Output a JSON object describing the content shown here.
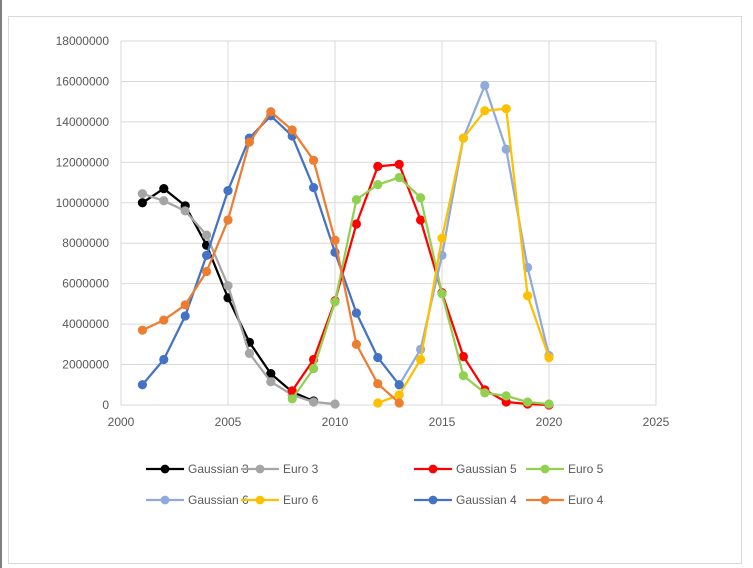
{
  "chart_data": {
    "type": "scatter",
    "title": "",
    "xlabel": "",
    "ylabel": "",
    "xlim": [
      2000,
      2025
    ],
    "ylim": [
      0,
      18000000
    ],
    "x_ticks": [
      "2000",
      "2005",
      "2010",
      "2015",
      "2020",
      "2025"
    ],
    "y_ticks": [
      "0",
      "2000000",
      "4000000",
      "6000000",
      "8000000",
      "10000000",
      "12000000",
      "14000000",
      "16000000",
      "18000000"
    ],
    "x_tick_values": [
      2000,
      2005,
      2010,
      2015,
      2020,
      2025
    ],
    "y_tick_values": [
      0,
      2000000,
      4000000,
      6000000,
      8000000,
      10000000,
      12000000,
      14000000,
      16000000,
      18000000
    ],
    "grid": true,
    "legend_position": "bottom",
    "series": [
      {
        "name": "Gaussian 3",
        "color": "#000000",
        "x": [
          2001,
          2002,
          2003,
          2004,
          2005,
          2006,
          2007,
          2008,
          2009
        ],
        "y": [
          10000000,
          10700000,
          9850000,
          7900000,
          5300000,
          3100000,
          1550000,
          650000,
          200000
        ]
      },
      {
        "name": "Euro 3",
        "color": "#a5a5a5",
        "x": [
          2001,
          2002,
          2003,
          2004,
          2005,
          2006,
          2007,
          2008,
          2009,
          2010
        ],
        "y": [
          10450000,
          10100000,
          9600000,
          8400000,
          5900000,
          2550000,
          1150000,
          500000,
          150000,
          50000
        ]
      },
      {
        "name": "Gaussian 5",
        "color": "#ff0000",
        "x": [
          2008,
          2009,
          2010,
          2011,
          2012,
          2013,
          2014,
          2015,
          2016,
          2017,
          2018,
          2019,
          2020
        ],
        "y": [
          700000,
          2250000,
          5150000,
          8950000,
          11800000,
          11900000,
          9150000,
          5550000,
          2400000,
          750000,
          150000,
          50000,
          0
        ]
      },
      {
        "name": "Euro 5",
        "color": "#92d050",
        "x": [
          2008,
          2009,
          2010,
          2011,
          2012,
          2013,
          2014,
          2015,
          2016,
          2017,
          2018,
          2019,
          2020
        ],
        "y": [
          300000,
          1800000,
          5100000,
          10150000,
          10900000,
          11250000,
          10250000,
          5500000,
          1450000,
          600000,
          450000,
          150000,
          50000
        ]
      },
      {
        "name": "Gaussian 6",
        "color": "#8faadc",
        "x": [
          2013,
          2014,
          2015,
          2016,
          2017,
          2018,
          2019,
          2020
        ],
        "y": [
          1000000,
          2750000,
          7400000,
          13200000,
          15800000,
          12650000,
          6800000,
          2450000
        ]
      },
      {
        "name": "Euro 6",
        "color": "#ffc000",
        "x": [
          2012,
          2013,
          2014,
          2015,
          2016,
          2017,
          2018,
          2019,
          2020
        ],
        "y": [
          100000,
          500000,
          2250000,
          8250000,
          13200000,
          14550000,
          14650000,
          5400000,
          2350000
        ]
      },
      {
        "name": "Gaussian 4",
        "color": "#4472c4",
        "x": [
          2001,
          2002,
          2003,
          2004,
          2005,
          2006,
          2007,
          2008,
          2009,
          2010,
          2011,
          2012,
          2013
        ],
        "y": [
          1000000,
          2250000,
          4400000,
          7400000,
          10600000,
          13200000,
          14300000,
          13300000,
          10750000,
          7550000,
          4550000,
          2350000,
          1000000
        ]
      },
      {
        "name": "Euro 4",
        "color": "#ed7d31",
        "x": [
          2001,
          2002,
          2003,
          2004,
          2005,
          2006,
          2007,
          2008,
          2009,
          2010,
          2011,
          2012,
          2013
        ],
        "y": [
          3700000,
          4200000,
          4950000,
          6600000,
          9150000,
          13000000,
          14500000,
          13600000,
          12100000,
          8150000,
          3000000,
          1050000,
          100000
        ]
      }
    ]
  }
}
